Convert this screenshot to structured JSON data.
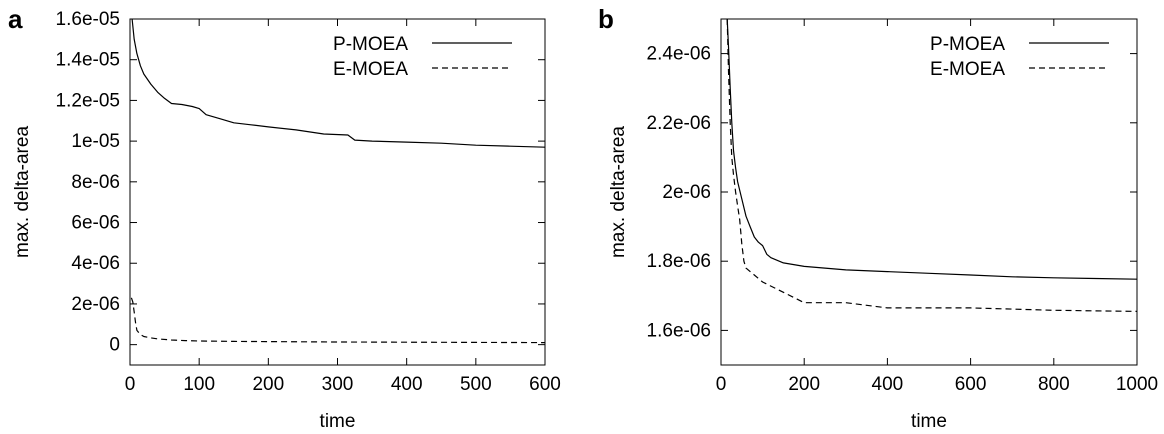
{
  "chart_data": [
    {
      "panel_label": "a",
      "type": "line",
      "xlabel": "time",
      "ylabel": "max. delta-area",
      "xlim": [
        0,
        600
      ],
      "ylim": [
        -1e-06,
        1.6e-05
      ],
      "xticks": [
        0,
        100,
        200,
        300,
        400,
        500,
        600
      ],
      "xtick_labels": [
        "0",
        "100",
        "200",
        "300",
        "400",
        "500",
        "600"
      ],
      "yticks": [
        0,
        2e-06,
        4e-06,
        6e-06,
        8e-06,
        1e-05,
        1.2e-05,
        1.4e-05,
        1.6e-05
      ],
      "ytick_labels": [
        "0",
        "2e-06",
        "4e-06",
        "6e-06",
        "8e-06",
        "1e-05",
        "1.2e-05",
        "1.4e-05",
        "1.6e-05"
      ],
      "grid": false,
      "legend_position": "top-right",
      "series": [
        {
          "name": "P-MOEA",
          "style": "solid",
          "x": [
            3,
            6,
            10,
            15,
            20,
            30,
            40,
            50,
            60,
            75,
            90,
            100,
            110,
            130,
            150,
            175,
            200,
            240,
            280,
            315,
            325,
            350,
            400,
            450,
            500,
            550,
            600
          ],
          "y": [
            1.6e-05,
            1.5e-05,
            1.43e-05,
            1.37e-05,
            1.33e-05,
            1.28e-05,
            1.24e-05,
            1.21e-05,
            1.185e-05,
            1.18e-05,
            1.17e-05,
            1.16e-05,
            1.13e-05,
            1.11e-05,
            1.09e-05,
            1.08e-05,
            1.07e-05,
            1.055e-05,
            1.035e-05,
            1.03e-05,
            1.005e-05,
            1e-05,
            9.95e-06,
            9.9e-06,
            9.8e-06,
            9.75e-06,
            9.7e-06
          ]
        },
        {
          "name": "E-MOEA",
          "style": "dashed",
          "x": [
            2,
            4,
            6,
            8,
            10,
            15,
            20,
            30,
            40,
            60,
            80,
            100,
            150,
            200,
            300,
            400,
            500,
            600
          ],
          "y": [
            2.3e-06,
            2.1e-06,
            1.6e-06,
            1.1e-06,
            7e-07,
            5e-07,
            4e-07,
            3.3e-07,
            2.8e-07,
            2.3e-07,
            2e-07,
            1.8e-07,
            1.6e-07,
            1.5e-07,
            1.3e-07,
            1.2e-07,
            1.1e-07,
            1e-07
          ]
        }
      ]
    },
    {
      "panel_label": "b",
      "type": "line",
      "xlabel": "time",
      "ylabel": "max. delta-area",
      "xlim": [
        0,
        1000
      ],
      "ylim": [
        1.5e-06,
        2.5e-06
      ],
      "xticks": [
        0,
        200,
        400,
        600,
        800,
        1000
      ],
      "xtick_labels": [
        "0",
        "200",
        "400",
        "600",
        "800",
        "1000"
      ],
      "yticks": [
        1.6e-06,
        1.8e-06,
        2e-06,
        2.2e-06,
        2.4e-06
      ],
      "ytick_labels": [
        "1.6e-06",
        "1.8e-06",
        "2e-06",
        "2.2e-06",
        "2.4e-06"
      ],
      "grid": false,
      "legend_position": "top-right",
      "series": [
        {
          "name": "P-MOEA",
          "style": "solid",
          "x": [
            15,
            18,
            22,
            26,
            30,
            35,
            40,
            50,
            60,
            70,
            80,
            90,
            100,
            110,
            120,
            150,
            200,
            250,
            300,
            400,
            500,
            600,
            700,
            800,
            900,
            1000
          ],
          "y": [
            2.5e-06,
            2.42e-06,
            2.3e-06,
            2.2e-06,
            2.12e-06,
            2.07e-06,
            2.03e-06,
            1.98e-06,
            1.93e-06,
            1.9e-06,
            1.87e-06,
            1.855e-06,
            1.845e-06,
            1.82e-06,
            1.81e-06,
            1.795e-06,
            1.785e-06,
            1.78e-06,
            1.775e-06,
            1.77e-06,
            1.765e-06,
            1.76e-06,
            1.755e-06,
            1.752e-06,
            1.75e-06,
            1.748e-06
          ]
        },
        {
          "name": "E-MOEA",
          "style": "dashed",
          "x": [
            15,
            18,
            22,
            26,
            30,
            35,
            40,
            45,
            50,
            55,
            60,
            80,
            100,
            150,
            200,
            300,
            400,
            600,
            800,
            1000
          ],
          "y": [
            2.5e-06,
            2.35e-06,
            2.2e-06,
            2.1e-06,
            2.05e-06,
            2e-06,
            1.96e-06,
            1.92e-06,
            1.85e-06,
            1.8e-06,
            1.78e-06,
            1.76e-06,
            1.74e-06,
            1.71e-06,
            1.68e-06,
            1.68e-06,
            1.665e-06,
            1.665e-06,
            1.658e-06,
            1.655e-06
          ]
        }
      ]
    }
  ]
}
